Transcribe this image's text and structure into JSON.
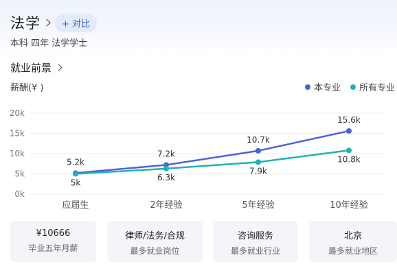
{
  "header": {
    "major_name": "法学",
    "compare_label": "+ 对比",
    "subtitle": "本科 四年 法学学士"
  },
  "section": {
    "title": "就业前景",
    "salary_label": "薪酬(¥ )"
  },
  "legend": [
    {
      "name": "本专业",
      "color": "#4a63d8"
    },
    {
      "name": "所有专业",
      "color": "#1fb3b0"
    }
  ],
  "chart_data": {
    "type": "line",
    "categories": [
      "应届生",
      "2年经验",
      "5年经验",
      "10年经验"
    ],
    "y_ticks": [
      "0k",
      "5k",
      "10k",
      "15k",
      "20k"
    ],
    "ylim": [
      0,
      20
    ],
    "grid": true,
    "legend_position": "top-right",
    "series": [
      {
        "name": "本专业",
        "color": "#4a63d8",
        "values": [
          5.2,
          7.2,
          10.7,
          15.6
        ],
        "labels": [
          "5.2k",
          "7.2k",
          "10.7k",
          "15.6k"
        ]
      },
      {
        "name": "所有专业",
        "color": "#1fb3b0",
        "values": [
          5.0,
          6.3,
          7.9,
          10.8
        ],
        "labels": [
          "5k",
          "6.3k",
          "7.9k",
          "10.8k"
        ]
      }
    ]
  },
  "cards": [
    {
      "value": "¥10666",
      "label": "毕业五年月薪"
    },
    {
      "value": "律师/法务/合规",
      "label": "最多就业岗位"
    },
    {
      "value": "咨询服务",
      "label": "最多就业行业"
    },
    {
      "value": "北京",
      "label": "最多就业地区"
    }
  ]
}
